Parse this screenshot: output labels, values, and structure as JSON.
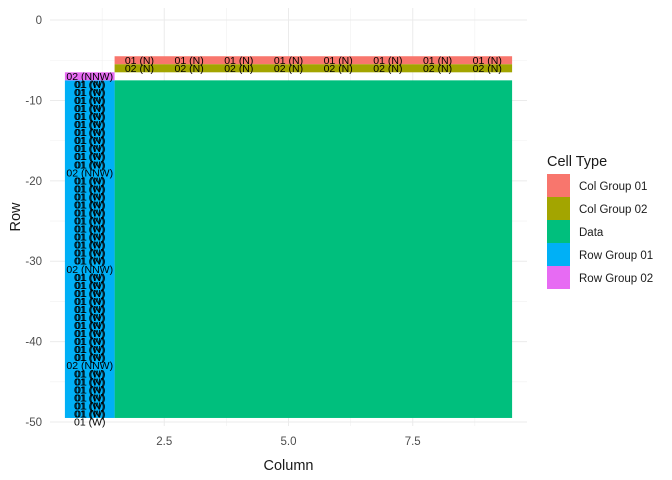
{
  "chart_data": {
    "type": "heatmap",
    "xlabel": "Column",
    "ylabel": "Row",
    "xlim": [
      0.2,
      9.8
    ],
    "ylim": [
      -50.5,
      1.5
    ],
    "x_ticks": [
      2.5,
      5.0,
      7.5
    ],
    "x_tick_labels": [
      "2.5",
      "5.0",
      "7.5"
    ],
    "y_ticks": [
      0,
      -10,
      -20,
      -30,
      -40,
      -50
    ],
    "y_tick_labels": [
      "0",
      "-10",
      "-20",
      "-30",
      "-40",
      "-50"
    ],
    "grid": true,
    "legend": {
      "title": "Cell Type",
      "placement": "right",
      "entries": [
        {
          "label": "Col Group 01",
          "color": "#F8766D"
        },
        {
          "label": "Col Group 02",
          "color": "#A3A500"
        },
        {
          "label": "Data",
          "color": "#00BF7D"
        },
        {
          "label": "Row Group 01",
          "color": "#00B0F6"
        },
        {
          "label": "Row Group 02",
          "color": "#E76BF3"
        }
      ]
    },
    "regions": [
      {
        "type": "Data",
        "x": [
          1.5,
          9.5
        ],
        "y": [
          -49.5,
          -7.5
        ]
      },
      {
        "type": "Row Group 01",
        "x": [
          0.5,
          1.5
        ],
        "y": [
          -49.5,
          -7.5
        ]
      },
      {
        "type": "Row Group 02",
        "x": [
          0.5,
          1.5
        ],
        "y": [
          -7.5,
          -6.5
        ]
      },
      {
        "type": "Col Group 01",
        "x": [
          1.5,
          9.5
        ],
        "y": [
          -5.5,
          -4.5
        ]
      },
      {
        "type": "Col Group 02",
        "x": [
          1.5,
          9.5
        ],
        "y": [
          -6.5,
          -5.5
        ]
      }
    ],
    "row_group_02_cells": [
      {
        "y": -7,
        "label": "02 (NNW)"
      },
      {
        "y": -19,
        "label": "02 (NNW)"
      },
      {
        "y": -31,
        "label": "02 (NNW)"
      },
      {
        "y": -43,
        "label": "02 (NNW)"
      }
    ],
    "row_group_01_cells": {
      "y_from": -8,
      "y_to": -49,
      "skip": [
        -19,
        -31,
        -43
      ],
      "labels": [
        "01 (N)",
        "01 (W)"
      ]
    },
    "col_group_01_cells": {
      "y": -5,
      "x": [
        2,
        3,
        4,
        5,
        6,
        7,
        8,
        9
      ],
      "label": "01 (N)"
    },
    "col_group_02_cells": {
      "y": -6,
      "x": [
        2,
        3,
        4,
        5,
        6,
        7,
        8,
        9
      ],
      "label": "02 (N)"
    },
    "bottom_label": {
      "x": 1,
      "y": -50,
      "label": "01 (W)"
    }
  }
}
